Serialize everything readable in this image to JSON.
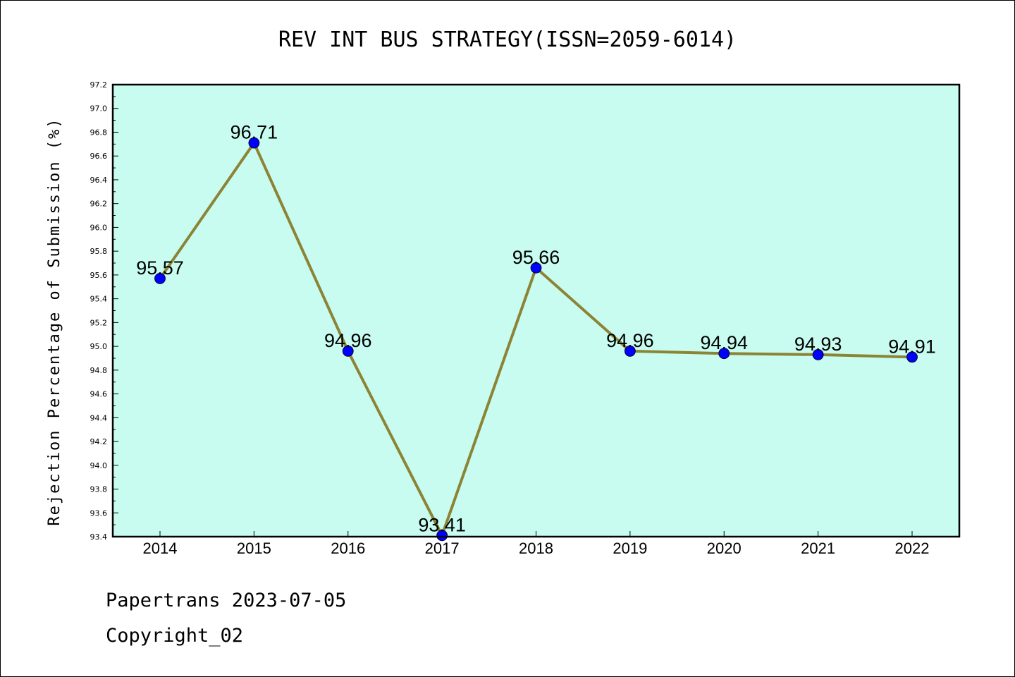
{
  "footer": {
    "line1": "Papertrans 2023-07-05",
    "line2": "Copyright_02"
  },
  "colors": {
    "plot_background": "#c8fcf0",
    "line": "#8c8435",
    "marker": "#0000ff"
  },
  "chart_data": {
    "type": "line",
    "title": "REV INT BUS STRATEGY(ISSN=2059-6014)",
    "xlabel": "",
    "ylabel": "Rejection Percentage of Submission (%)",
    "categories": [
      "2014",
      "2015",
      "2016",
      "2017",
      "2018",
      "2019",
      "2020",
      "2021",
      "2022"
    ],
    "values": [
      95.57,
      96.71,
      94.96,
      93.41,
      95.66,
      94.96,
      94.94,
      94.93,
      94.91
    ],
    "data_labels": [
      "95.57",
      "96.71",
      "94.96",
      "93.41",
      "95.66",
      "94.96",
      "94.94",
      "94.93",
      "94.91"
    ],
    "ylim": [
      93.4,
      97.2
    ],
    "yticks": [
      "93.4",
      "93.6",
      "93.8",
      "94.0",
      "94.2",
      "94.4",
      "94.6",
      "94.8",
      "95.0",
      "95.2",
      "95.4",
      "95.6",
      "95.8",
      "96.0",
      "96.2",
      "96.4",
      "96.6",
      "96.8",
      "97.0",
      "97.2"
    ],
    "grid": false,
    "legend": "none"
  }
}
